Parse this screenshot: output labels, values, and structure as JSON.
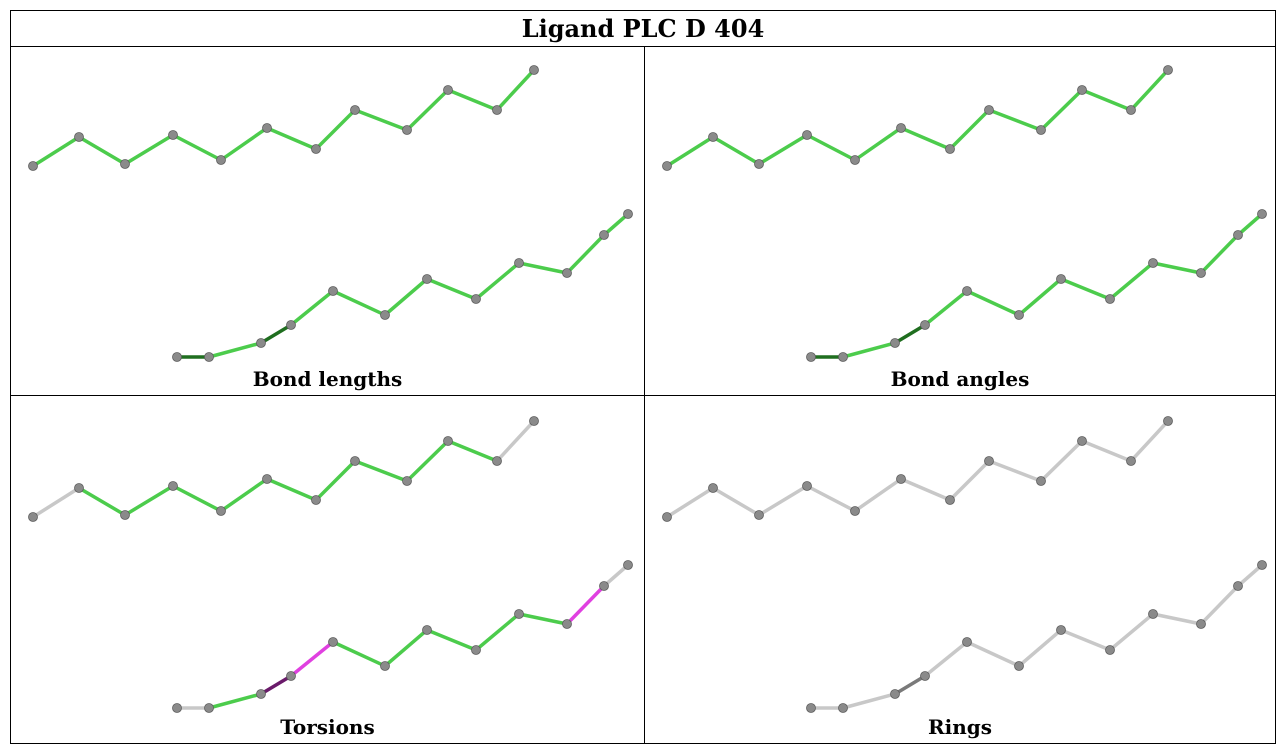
{
  "title": "Ligand PLC D 404",
  "panels": [
    {
      "caption": "Bond lengths",
      "upper_bonds": [
        "green",
        "green",
        "green",
        "green",
        "green",
        "green",
        "green",
        "green",
        "green",
        "green",
        "green"
      ],
      "lower_bonds": [
        "darkgreen",
        "green",
        "darkgreen",
        "green",
        "green",
        "green",
        "green",
        "green",
        "green",
        "green",
        "green",
        "green"
      ]
    },
    {
      "caption": "Bond angles",
      "upper_bonds": [
        "green",
        "green",
        "green",
        "green",
        "green",
        "green",
        "green",
        "green",
        "green",
        "green",
        "green"
      ],
      "lower_bonds": [
        "darkgreen",
        "green",
        "darkgreen",
        "green",
        "green",
        "green",
        "green",
        "green",
        "green",
        "green",
        "green",
        "green"
      ]
    },
    {
      "caption": "Torsions",
      "upper_bonds": [
        "grey",
        "green",
        "green",
        "green",
        "green",
        "green",
        "green",
        "green",
        "green",
        "green",
        "grey"
      ],
      "lower_bonds": [
        "grey",
        "green",
        "darkmagenta",
        "magenta",
        "green",
        "green",
        "green",
        "green",
        "green",
        "magenta",
        "grey",
        "grey"
      ]
    },
    {
      "caption": "Rings",
      "upper_bonds": [
        "grey",
        "grey",
        "grey",
        "grey",
        "grey",
        "grey",
        "grey",
        "grey",
        "grey",
        "grey",
        "grey"
      ],
      "lower_bonds": [
        "grey",
        "grey",
        "darkgrey",
        "grey",
        "grey",
        "grey",
        "grey",
        "grey",
        "grey",
        "grey",
        "grey",
        "grey"
      ]
    }
  ],
  "colors": {
    "green": "#4ccc4c",
    "darkgreen": "#1f6e1f",
    "magenta": "#e040e0",
    "darkmagenta": "#6a1a6a",
    "grey": "#c8c8c8",
    "darkgrey": "#7a7a7a",
    "atom": "#8a8a8a"
  }
}
